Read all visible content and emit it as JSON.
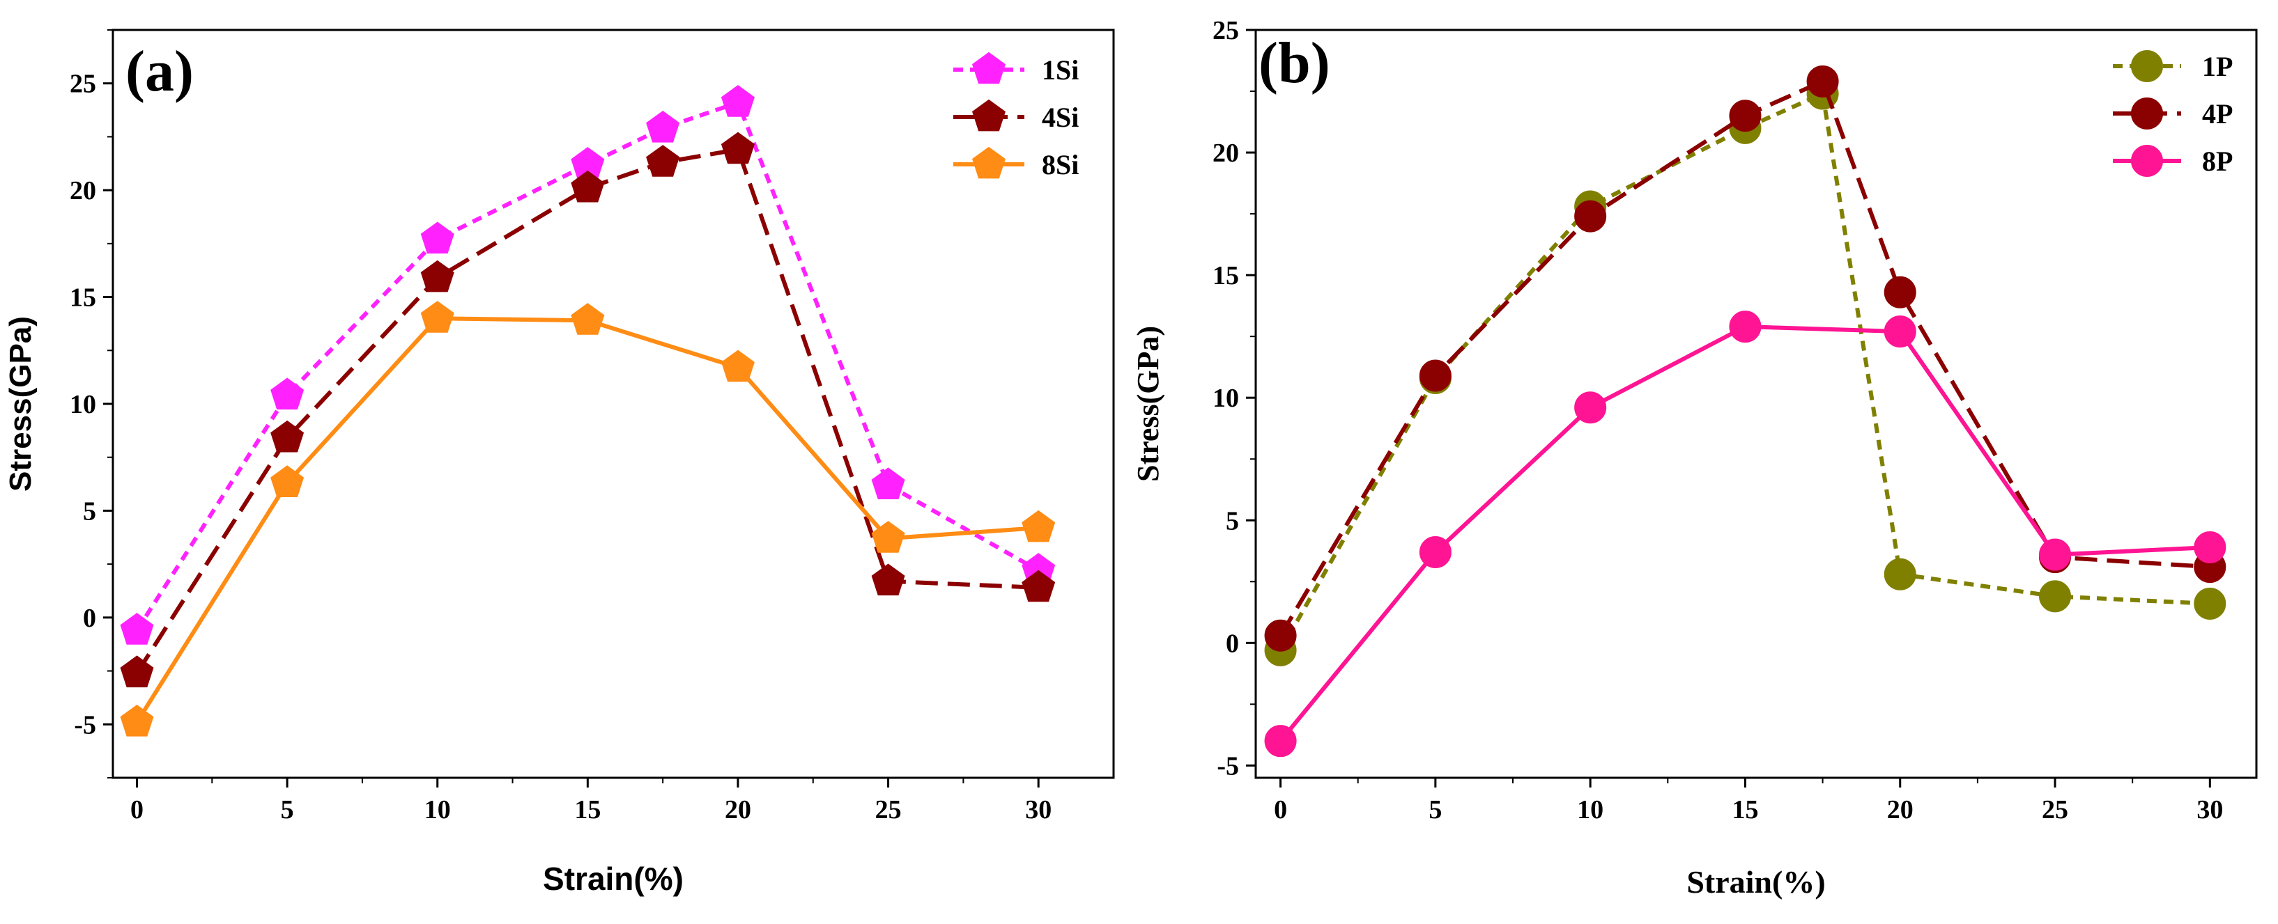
{
  "chart_data": [
    {
      "type": "line",
      "title": "(a)",
      "xlabel": "Strain(%)",
      "ylabel": "Stress(GPa)",
      "xlim": [
        -0.8,
        32.5
      ],
      "ylim": [
        -7.5,
        27.5
      ],
      "xticks": [
        0,
        5,
        10,
        15,
        20,
        25,
        30
      ],
      "yticks": [
        -5,
        0,
        5,
        10,
        15,
        20,
        25
      ],
      "legend_position": "top-right",
      "grid": false,
      "series": [
        {
          "name": "1Si",
          "color": "#ff22ff",
          "dash": "short",
          "marker": "pentagon",
          "x": [
            0,
            5,
            10,
            15,
            17.5,
            20,
            25,
            30
          ],
          "y": [
            -0.6,
            10.4,
            17.7,
            21.2,
            22.9,
            24.1,
            6.2,
            2.2
          ]
        },
        {
          "name": "4Si",
          "color": "#8b0000",
          "dash": "long",
          "marker": "pentagon",
          "x": [
            0,
            5,
            10,
            15,
            17.5,
            20,
            25,
            30
          ],
          "y": [
            -2.6,
            8.4,
            15.9,
            20.1,
            21.3,
            21.9,
            1.7,
            1.4
          ]
        },
        {
          "name": "8Si",
          "color": "#ff8c14",
          "dash": "solid",
          "marker": "pentagon",
          "x": [
            0,
            5,
            10,
            15,
            20,
            25,
            30
          ],
          "y": [
            -4.9,
            6.3,
            14.0,
            13.9,
            11.7,
            3.7,
            4.2
          ]
        }
      ]
    },
    {
      "type": "line",
      "title": "(b)",
      "xlabel": "Strain(%)",
      "ylabel": "Stress(GPa)",
      "xlim": [
        -0.8,
        31.5
      ],
      "ylim": [
        -5.5,
        25
      ],
      "xticks": [
        0,
        5,
        10,
        15,
        20,
        25,
        30
      ],
      "yticks": [
        -5,
        0,
        5,
        10,
        15,
        20,
        25
      ],
      "legend_position": "top-right",
      "grid": false,
      "series": [
        {
          "name": "1P",
          "color": "#808000",
          "dash": "short",
          "marker": "circle",
          "x": [
            0,
            5,
            10,
            15,
            17.5,
            20,
            25,
            30
          ],
          "y": [
            -0.3,
            10.8,
            17.8,
            21.0,
            22.4,
            2.8,
            1.9,
            1.6
          ]
        },
        {
          "name": "4P",
          "color": "#8b0000",
          "dash": "long",
          "marker": "circle",
          "x": [
            0,
            5,
            10,
            15,
            17.5,
            20,
            25,
            30
          ],
          "y": [
            0.3,
            10.9,
            17.4,
            21.5,
            22.9,
            14.3,
            3.5,
            3.1
          ]
        },
        {
          "name": "8P",
          "color": "#ff1493",
          "dash": "solid",
          "marker": "circle",
          "x": [
            0,
            5,
            10,
            15,
            20,
            25,
            30
          ],
          "y": [
            -4.0,
            3.7,
            9.6,
            12.9,
            12.7,
            3.6,
            3.9
          ]
        }
      ]
    }
  ]
}
